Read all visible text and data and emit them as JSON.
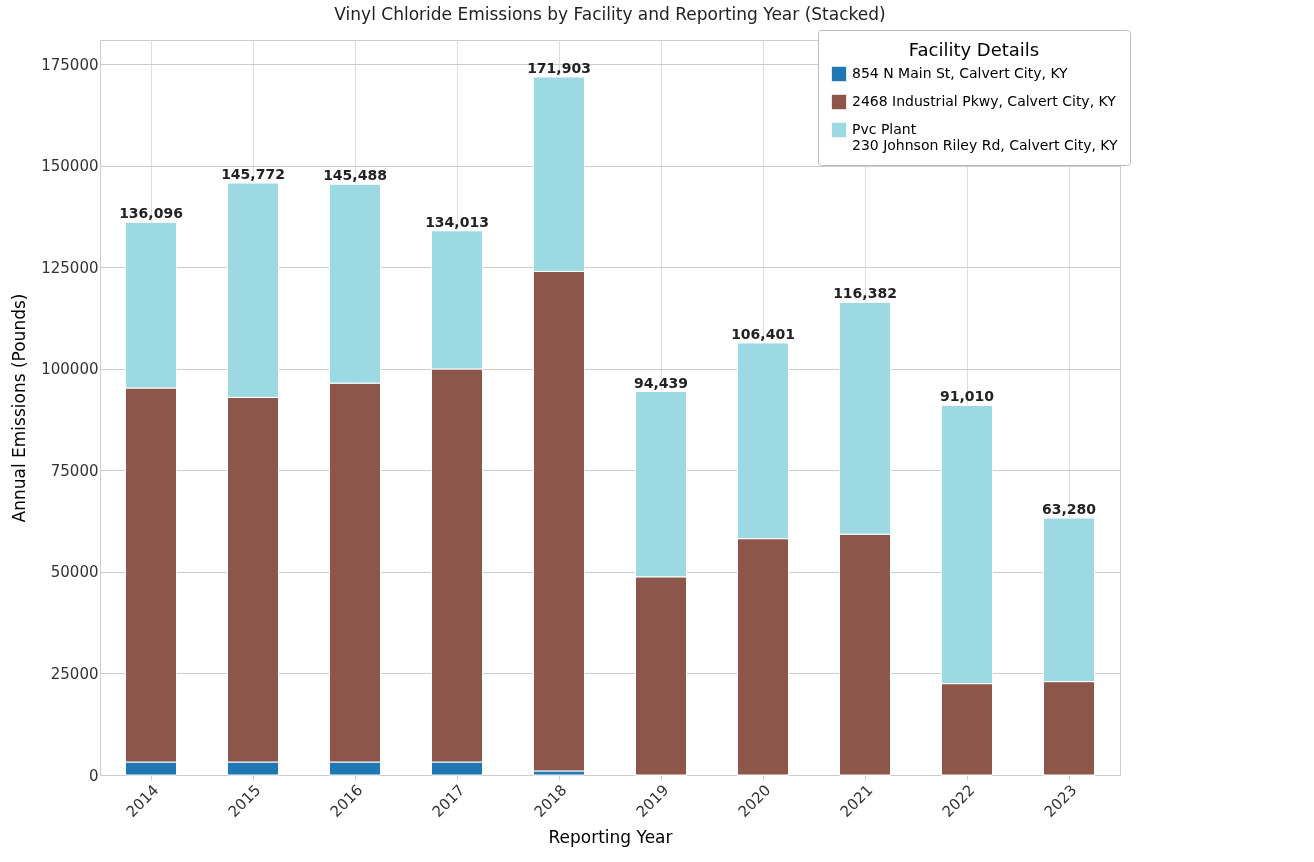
{
  "chart_data": {
    "type": "bar",
    "title": "Vinyl Chloride Emissions by Facility and Reporting Year (Stacked)",
    "xlabel": "Reporting Year",
    "ylabel": "Annual Emissions (Pounds)",
    "legend_title": "Facility Details",
    "categories": [
      "2014",
      "2015",
      "2016",
      "2017",
      "2018",
      "2019",
      "2020",
      "2021",
      "2022",
      "2023"
    ],
    "stacked": true,
    "series": [
      {
        "name": "854 N Main St, Calvert City, KY",
        "color": "#1f77b4",
        "values": [
          3200,
          3200,
          3200,
          3200,
          1000,
          0,
          0,
          0,
          0,
          0
        ]
      },
      {
        "name": "2468 Industrial Pkwy, Calvert City, KY",
        "color": "#8c564b",
        "values": [
          92100,
          89800,
          93300,
          96800,
          123000,
          48800,
          58200,
          59300,
          22500,
          23000
        ]
      },
      {
        "name": "Pvc Plant\n230 Johnson Riley Rd, Calvert City, KY",
        "color": "#9dd9e2",
        "values": [
          40796,
          52772,
          48988,
          34013,
          47903,
          45639,
          48201,
          57082,
          68510,
          40280
        ]
      }
    ],
    "totals": [
      "136,096",
      "145,772",
      "145,488",
      "134,013",
      "171,903",
      "94,439",
      "106,401",
      "116,382",
      "91,010",
      "63,280"
    ],
    "ylim": [
      0,
      181000
    ],
    "yticks": [
      0,
      25000,
      50000,
      75000,
      100000,
      125000,
      150000,
      175000
    ],
    "grid": true,
    "legend": "top right"
  }
}
